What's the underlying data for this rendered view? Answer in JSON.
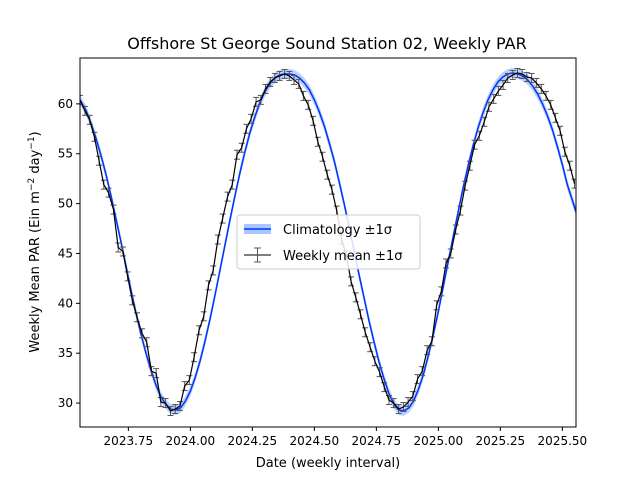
{
  "chart_data": {
    "type": "line",
    "title": "Offshore St George Sound Station 02, Weekly PAR",
    "xlabel": "Date (weekly interval)",
    "ylabel_main": "Weekly Mean PAR (Ein m",
    "ylabel_sup1": "−2",
    "ylabel_mid": " day",
    "ylabel_sup2": "−1",
    "ylabel_end": ")",
    "xlim": [
      2023.555,
      2025.555
    ],
    "ylim": [
      27.6,
      64.6
    ],
    "x_ticks": [
      2023.75,
      2024.0,
      2024.25,
      2024.5,
      2024.75,
      2025.0,
      2025.25,
      2025.5
    ],
    "x_tick_labels": [
      "2023.75",
      "2024.00",
      "2024.25",
      "2024.50",
      "2024.75",
      "2025.00",
      "2025.25",
      "2025.50"
    ],
    "y_ticks": [
      30,
      35,
      40,
      45,
      50,
      55,
      60
    ],
    "y_tick_labels": [
      "30",
      "35",
      "40",
      "45",
      "50",
      "55",
      "60"
    ],
    "grid": false,
    "legend_position": "center",
    "colors": {
      "climatology": "#0033ff",
      "climatology_band": "#aac6ff",
      "weekly": "#000000",
      "errorbar": "#555555"
    },
    "series": [
      {
        "name": "Climatology ±1σ",
        "kind": "band-line",
        "x": [
          2023.555,
          2023.58,
          2023.6,
          2023.62,
          2023.64,
          2023.66,
          2023.68,
          2023.7,
          2023.72,
          2023.74,
          2023.76,
          2023.78,
          2023.8,
          2023.82,
          2023.84,
          2023.86,
          2023.88,
          2023.9,
          2023.92,
          2023.94,
          2023.96,
          2023.98,
          2024.0,
          2024.02,
          2024.04,
          2024.06,
          2024.08,
          2024.1,
          2024.12,
          2024.14,
          2024.16,
          2024.18,
          2024.2,
          2024.22,
          2024.24,
          2024.26,
          2024.28,
          2024.3,
          2024.32,
          2024.34,
          2024.36,
          2024.38,
          2024.4,
          2024.42,
          2024.44,
          2024.46,
          2024.48,
          2024.5,
          2024.52,
          2024.54,
          2024.56,
          2024.58,
          2024.6,
          2024.62,
          2024.64,
          2024.66,
          2024.68,
          2024.7,
          2024.72,
          2024.74,
          2024.76,
          2024.78,
          2024.8,
          2024.82,
          2024.84,
          2024.86,
          2024.88,
          2024.9,
          2024.92,
          2024.94,
          2024.96,
          2024.98,
          2025.0,
          2025.02,
          2025.04,
          2025.06,
          2025.08,
          2025.1,
          2025.12,
          2025.14,
          2025.16,
          2025.18,
          2025.2,
          2025.22,
          2025.24,
          2025.26,
          2025.28,
          2025.3,
          2025.32,
          2025.34,
          2025.36,
          2025.38,
          2025.4,
          2025.42,
          2025.44,
          2025.46,
          2025.48,
          2025.5,
          2025.52,
          2025.555
        ],
        "y": [
          60.4,
          59.3,
          58.0,
          56.5,
          54.8,
          52.9,
          50.8,
          48.5,
          46.2,
          43.8,
          41.4,
          39.1,
          37.0,
          35.1,
          33.4,
          31.9,
          30.7,
          29.9,
          29.4,
          29.3,
          29.5,
          30.2,
          31.2,
          32.6,
          34.3,
          36.3,
          38.5,
          40.9,
          43.4,
          45.9,
          48.4,
          50.8,
          53.1,
          55.2,
          57.1,
          58.7,
          60.1,
          61.2,
          62.0,
          62.6,
          62.9,
          63.0,
          63.0,
          62.9,
          62.6,
          62.1,
          61.4,
          60.4,
          59.2,
          57.8,
          56.1,
          54.3,
          52.2,
          50.0,
          47.7,
          45.3,
          42.9,
          40.6,
          38.3,
          36.2,
          34.2,
          32.5,
          31.0,
          29.9,
          29.3,
          29.2,
          29.5,
          30.2,
          31.4,
          32.9,
          34.8,
          36.9,
          39.2,
          41.7,
          44.2,
          46.7,
          49.2,
          51.6,
          53.8,
          55.8,
          57.6,
          59.1,
          60.4,
          61.4,
          62.2,
          62.7,
          63.0,
          63.1,
          63.0,
          62.8,
          62.4,
          61.8,
          61.0,
          60.0,
          58.8,
          57.4,
          55.7,
          53.9,
          51.9,
          49.2
        ]
      },
      {
        "name": "Weekly mean ±1σ",
        "kind": "errorbar-line",
        "x": [
          2023.555,
          2023.575,
          2023.594,
          2023.613,
          2023.632,
          2023.651,
          2023.67,
          2023.69,
          2023.709,
          2023.728,
          2023.747,
          2023.766,
          2023.785,
          2023.805,
          2023.824,
          2023.843,
          2023.862,
          2023.881,
          2023.9,
          2023.92,
          2023.939,
          2023.958,
          2023.977,
          2023.996,
          2024.015,
          2024.035,
          2024.054,
          2024.073,
          2024.092,
          2024.111,
          2024.13,
          2024.15,
          2024.169,
          2024.188,
          2024.207,
          2024.226,
          2024.245,
          2024.265,
          2024.284,
          2024.303,
          2024.322,
          2024.341,
          2024.36,
          2024.38,
          2024.399,
          2024.418,
          2024.437,
          2024.456,
          2024.475,
          2024.495,
          2024.514,
          2024.533,
          2024.552,
          2024.571,
          2024.59,
          2024.61,
          2024.629,
          2024.648,
          2024.667,
          2024.686,
          2024.705,
          2024.725,
          2024.744,
          2024.763,
          2024.782,
          2024.801,
          2024.82,
          2024.84,
          2024.859,
          2024.878,
          2024.897,
          2024.916,
          2024.935,
          2024.955,
          2024.974,
          2024.993,
          2025.012,
          2025.031,
          2025.05,
          2025.07,
          2025.089,
          2025.108,
          2025.127,
          2025.146,
          2025.165,
          2025.185,
          2025.204,
          2025.223,
          2025.242,
          2025.261,
          2025.28,
          2025.3,
          2025.319,
          2025.338,
          2025.357,
          2025.376,
          2025.395,
          2025.415,
          2025.434,
          2025.453,
          2025.472,
          2025.491,
          2025.51,
          2025.53,
          2025.549
        ],
        "y": [
          60.4,
          59.3,
          58.4,
          56.7,
          54.3,
          51.9,
          51.1,
          49.4,
          45.6,
          45.2,
          42.7,
          40.3,
          38.6,
          37.0,
          36.1,
          33.2,
          33.0,
          30.1,
          30.0,
          29.2,
          29.4,
          29.7,
          31.7,
          32.3,
          34.6,
          37.3,
          38.7,
          41.8,
          43.3,
          46.4,
          48.5,
          50.7,
          51.9,
          54.9,
          55.6,
          57.5,
          58.5,
          60.2,
          60.4,
          61.5,
          62.2,
          62.6,
          62.8,
          63.0,
          62.8,
          62.4,
          62.0,
          60.8,
          59.9,
          58.3,
          56.2,
          54.7,
          52.9,
          51.4,
          49.3,
          46.4,
          44.8,
          42.2,
          40.6,
          38.9,
          37.1,
          35.6,
          34.2,
          33.1,
          31.6,
          30.3,
          30.0,
          29.4,
          29.6,
          30.1,
          30.7,
          32.4,
          33.2,
          35.3,
          36.2,
          39.8,
          41.2,
          44.0,
          45.0,
          47.4,
          49.3,
          51.8,
          53.8,
          55.9,
          56.8,
          58.2,
          59.7,
          60.5,
          61.3,
          61.9,
          62.6,
          62.9,
          63.1,
          63.0,
          62.7,
          62.6,
          62.1,
          61.5,
          60.8,
          59.9,
          58.6,
          57.3,
          55.2,
          53.8,
          52.0
        ],
        "err": 0.45
      }
    ]
  }
}
